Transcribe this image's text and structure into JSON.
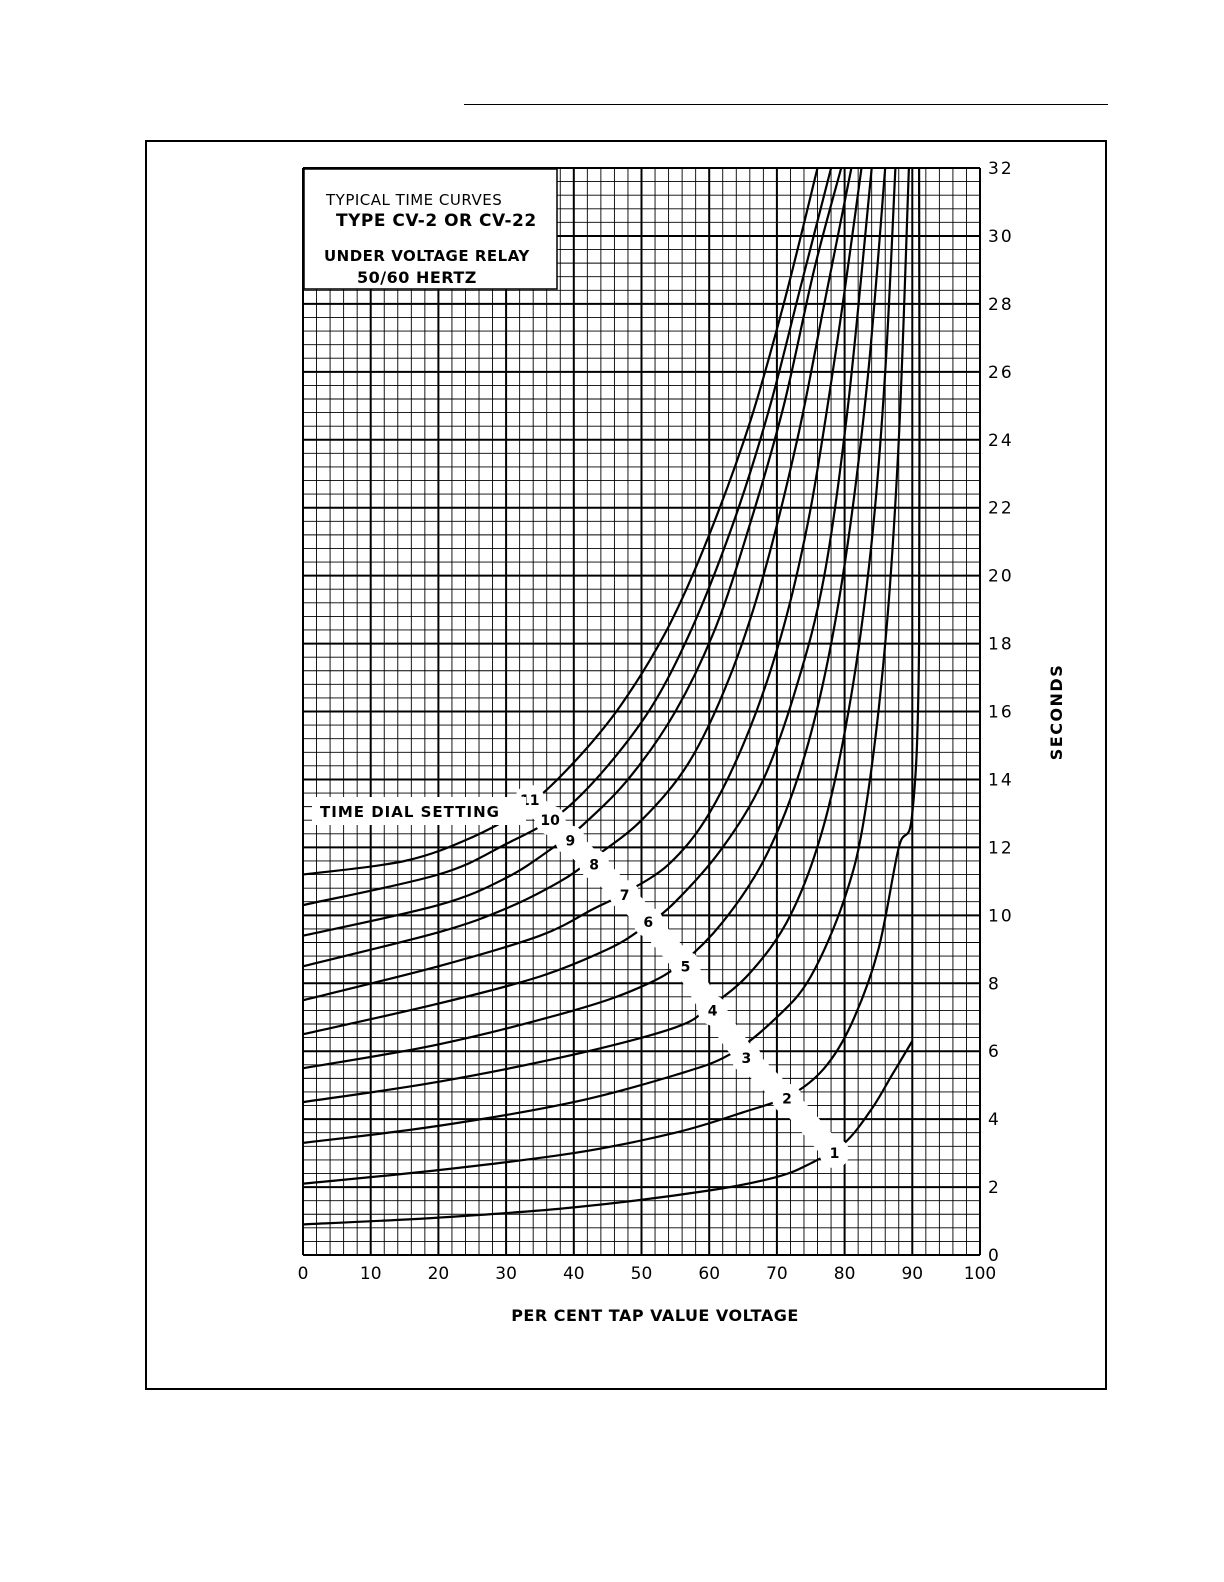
{
  "chart_data": {
    "type": "line",
    "title_lines": [
      "TYPICAL TIME CURVES",
      "TYPE CV-2 OR CV-22",
      "UNDER VOLTAGE RELAY",
      "50/60 HERTZ"
    ],
    "xlabel": "PER CENT TAP VALUE VOLTAGE",
    "ylabel": "SECONDS",
    "xlim": [
      0,
      100
    ],
    "ylim": [
      0,
      32
    ],
    "x_ticks": [
      0,
      10,
      20,
      30,
      40,
      50,
      60,
      70,
      80,
      90,
      100
    ],
    "y_ticks": [
      0,
      2,
      4,
      6,
      8,
      10,
      12,
      14,
      16,
      18,
      20,
      22,
      24,
      26,
      28,
      30,
      32
    ],
    "y_tick_labels": [
      "0",
      "2",
      "4",
      "6",
      "8",
      "10",
      "12",
      "14",
      "16",
      "18",
      "20",
      "22",
      "24",
      "26",
      "28",
      "30",
      "32"
    ],
    "grid": "major every 10% and 2 s, minor every 2% and 0.4 s",
    "annotation": "TIME DIAL SETTING",
    "series": [
      {
        "name": "1",
        "points": [
          [
            0,
            0.9
          ],
          [
            20,
            1.1
          ],
          [
            40,
            1.4
          ],
          [
            60,
            1.9
          ],
          [
            70,
            2.3
          ],
          [
            75,
            2.7
          ],
          [
            80,
            3.3
          ],
          [
            84,
            4.3
          ],
          [
            87,
            5.3
          ],
          [
            90,
            6.3
          ]
        ]
      },
      {
        "name": "2",
        "points": [
          [
            0,
            2.1
          ],
          [
            20,
            2.5
          ],
          [
            40,
            3.0
          ],
          [
            55,
            3.6
          ],
          [
            65,
            4.2
          ],
          [
            72,
            4.7
          ],
          [
            77,
            5.5
          ],
          [
            81,
            6.8
          ],
          [
            85,
            9.0
          ],
          [
            88,
            12.0
          ],
          [
            90,
            13.0
          ],
          [
            91,
            18.0
          ],
          [
            91,
            32.0
          ]
        ]
      },
      {
        "name": "3",
        "points": [
          [
            0,
            3.3
          ],
          [
            20,
            3.8
          ],
          [
            40,
            4.5
          ],
          [
            55,
            5.3
          ],
          [
            63,
            5.9
          ],
          [
            70,
            7.0
          ],
          [
            75,
            8.2
          ],
          [
            80,
            10.5
          ],
          [
            83,
            13.0
          ],
          [
            86,
            18.0
          ],
          [
            88,
            24.0
          ],
          [
            89.5,
            32.0
          ]
        ]
      },
      {
        "name": "4",
        "points": [
          [
            0,
            4.5
          ],
          [
            20,
            5.1
          ],
          [
            40,
            5.9
          ],
          [
            55,
            6.7
          ],
          [
            60,
            7.3
          ],
          [
            66,
            8.3
          ],
          [
            72,
            10.0
          ],
          [
            77,
            12.7
          ],
          [
            81,
            16.5
          ],
          [
            84,
            21.0
          ],
          [
            86,
            26.0
          ],
          [
            87.5,
            32.0
          ]
        ]
      },
      {
        "name": "5",
        "points": [
          [
            0,
            5.5
          ],
          [
            20,
            6.2
          ],
          [
            40,
            7.2
          ],
          [
            50,
            7.9
          ],
          [
            56,
            8.6
          ],
          [
            62,
            9.8
          ],
          [
            68,
            11.6
          ],
          [
            73,
            14.0
          ],
          [
            77,
            17.0
          ],
          [
            80.5,
            21.0
          ],
          [
            83.5,
            26.0
          ],
          [
            86,
            32.0
          ]
        ]
      },
      {
        "name": "6",
        "points": [
          [
            0,
            6.5
          ],
          [
            20,
            7.4
          ],
          [
            35,
            8.2
          ],
          [
            45,
            9.0
          ],
          [
            50,
            9.6
          ],
          [
            55,
            10.4
          ],
          [
            62,
            12.0
          ],
          [
            68,
            14.0
          ],
          [
            73,
            16.8
          ],
          [
            77,
            20.0
          ],
          [
            80.5,
            25.0
          ],
          [
            84,
            32.0
          ]
        ]
      },
      {
        "name": "7",
        "points": [
          [
            0,
            7.5
          ],
          [
            20,
            8.5
          ],
          [
            35,
            9.4
          ],
          [
            43,
            10.2
          ],
          [
            47,
            10.6
          ],
          [
            54,
            11.5
          ],
          [
            60,
            13.0
          ],
          [
            66,
            15.5
          ],
          [
            71,
            18.5
          ],
          [
            75,
            22.0
          ],
          [
            79,
            27.0
          ],
          [
            82.5,
            32.0
          ]
        ]
      },
      {
        "name": "8",
        "points": [
          [
            0,
            8.5
          ],
          [
            20,
            9.5
          ],
          [
            30,
            10.2
          ],
          [
            38,
            11.0
          ],
          [
            43,
            11.7
          ],
          [
            50,
            12.8
          ],
          [
            57,
            14.5
          ],
          [
            63,
            17.0
          ],
          [
            68,
            20.0
          ],
          [
            73,
            24.0
          ],
          [
            77,
            28.0
          ],
          [
            81,
            32.0
          ]
        ]
      },
      {
        "name": "9",
        "points": [
          [
            0,
            9.4
          ],
          [
            20,
            10.3
          ],
          [
            30,
            11.1
          ],
          [
            37,
            12.0
          ],
          [
            41,
            12.6
          ],
          [
            48,
            14.0
          ],
          [
            55,
            16.0
          ],
          [
            61,
            18.5
          ],
          [
            66,
            21.5
          ],
          [
            71,
            25.0
          ],
          [
            75.5,
            29.0
          ],
          [
            79.5,
            32.0
          ]
        ]
      },
      {
        "name": "10",
        "points": [
          [
            0,
            10.3
          ],
          [
            20,
            11.2
          ],
          [
            30,
            12.1
          ],
          [
            38,
            13.0
          ],
          [
            45,
            14.4
          ],
          [
            52,
            16.3
          ],
          [
            58,
            18.7
          ],
          [
            64,
            21.8
          ],
          [
            69,
            25.0
          ],
          [
            73.5,
            28.5
          ],
          [
            78,
            32.0
          ]
        ]
      },
      {
        "name": "11",
        "points": [
          [
            0,
            11.2
          ],
          [
            15,
            11.6
          ],
          [
            25,
            12.3
          ],
          [
            33,
            13.2
          ],
          [
            40,
            14.5
          ],
          [
            47,
            16.2
          ],
          [
            54,
            18.5
          ],
          [
            60,
            21.2
          ],
          [
            66,
            24.5
          ],
          [
            71,
            28.0
          ],
          [
            76,
            32.0
          ]
        ]
      }
    ],
    "curve_labels": [
      {
        "text": "1",
        "x": 78.5,
        "y": 3.0
      },
      {
        "text": "2",
        "x": 71.5,
        "y": 4.6
      },
      {
        "text": "3",
        "x": 65.5,
        "y": 5.8
      },
      {
        "text": "4",
        "x": 60.5,
        "y": 7.2
      },
      {
        "text": "5",
        "x": 56.5,
        "y": 8.5
      },
      {
        "text": "6",
        "x": 51.0,
        "y": 9.8
      },
      {
        "text": "7",
        "x": 47.5,
        "y": 10.6
      },
      {
        "text": "8",
        "x": 43.0,
        "y": 11.5
      },
      {
        "text": "9",
        "x": 39.5,
        "y": 12.2
      },
      {
        "text": "10",
        "x": 36.5,
        "y": 12.8
      },
      {
        "text": "11",
        "x": 33.5,
        "y": 13.4
      }
    ]
  }
}
